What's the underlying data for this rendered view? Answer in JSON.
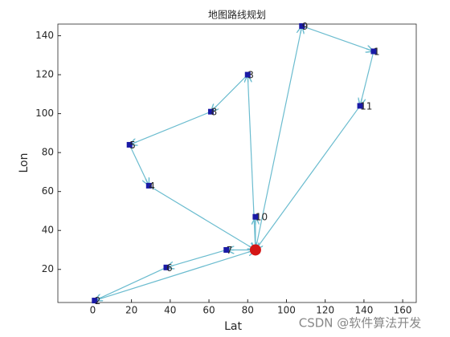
{
  "chart_data": {
    "type": "route",
    "title": "地图路线规划",
    "x_label": "Lat",
    "y_label": "Lon",
    "x": [
      84,
      145,
      1,
      80,
      29,
      19,
      38,
      69,
      61,
      108,
      84,
      138
    ],
    "y": [
      30,
      132,
      4,
      120,
      63,
      84,
      21,
      30,
      101,
      145,
      47,
      104
    ],
    "labels": [
      null,
      "1",
      "2",
      "3",
      "4",
      "5",
      "6",
      "7",
      "8",
      "9",
      "10",
      "11"
    ],
    "routes": [
      [
        0,
        9,
        1,
        11,
        0
      ],
      [
        0,
        3,
        8,
        5,
        4,
        0
      ],
      [
        0,
        7,
        6,
        2,
        0
      ],
      [
        0,
        10,
        0
      ]
    ],
    "line_color": "#6bbccf",
    "marker_color": "#1a1aa6",
    "depot_color": "#d41616",
    "xlim": [
      -18,
      167
    ],
    "ylim": [
      3,
      146
    ],
    "xticks": [
      0,
      20,
      40,
      60,
      80,
      100,
      120,
      140,
      160
    ],
    "yticks": [
      20,
      40,
      60,
      80,
      100,
      120,
      140
    ],
    "watermark": "CSDN @软件算法开发"
  }
}
